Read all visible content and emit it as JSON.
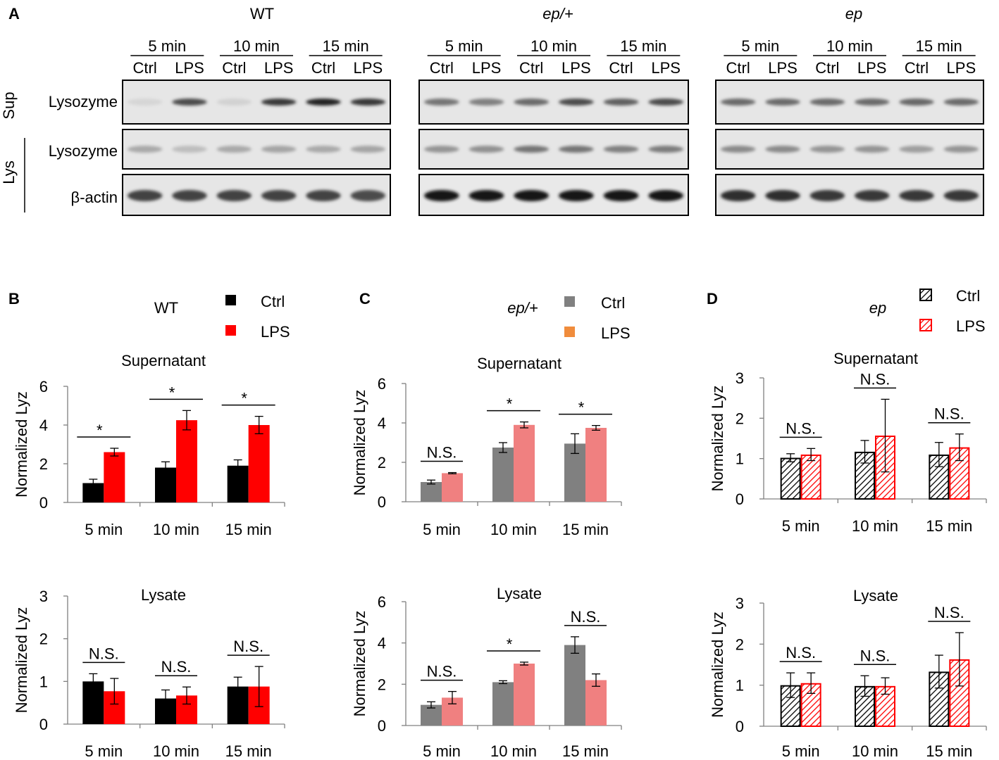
{
  "colors": {
    "wt_ctrl": "#000000",
    "wt_lps": "#ff0000",
    "het_ctrl": "#808080",
    "het_lps": "#f08080",
    "het_legend_lps": "#f08c3c",
    "ep_ctrl_hatch": "#000000",
    "ep_lps_hatch": "#ff0000"
  },
  "panel_a": {
    "letter": "A",
    "sup_label": "Sup",
    "lys_label": "Lys",
    "row_labels": [
      "Lysozyme",
      "Lysozyme",
      "β-actin"
    ],
    "blots": [
      {
        "title": "WT",
        "italic": false,
        "times": [
          "5 min",
          "10 min",
          "15 min"
        ],
        "lanes": [
          "Ctrl",
          "LPS",
          "Ctrl",
          "LPS",
          "Ctrl",
          "LPS"
        ]
      },
      {
        "title": "ep/+",
        "italic": true,
        "times": [
          "5 min",
          "10 min",
          "15 min"
        ],
        "lanes": [
          "Ctrl",
          "LPS",
          "Ctrl",
          "LPS",
          "Ctrl",
          "LPS"
        ]
      },
      {
        "title": "ep",
        "italic": true,
        "times": [
          "5 min",
          "10 min",
          "15 min"
        ],
        "lanes": [
          "Ctrl",
          "LPS",
          "Ctrl",
          "LPS",
          "Ctrl",
          "LPS"
        ]
      }
    ],
    "band_intensity": [
      [
        [
          0.08,
          0.75,
          0.1,
          0.85,
          0.95,
          0.85
        ],
        [
          0.3,
          0.2,
          0.3,
          0.32,
          0.3,
          0.32
        ],
        [
          0.8,
          0.8,
          0.8,
          0.8,
          0.8,
          0.75
        ]
      ],
      [
        [
          0.55,
          0.5,
          0.6,
          0.75,
          0.65,
          0.75
        ],
        [
          0.4,
          0.42,
          0.55,
          0.55,
          0.5,
          0.52
        ],
        [
          1.0,
          1.0,
          1.0,
          1.0,
          1.0,
          1.0
        ]
      ],
      [
        [
          0.6,
          0.6,
          0.6,
          0.6,
          0.62,
          0.6
        ],
        [
          0.45,
          0.45,
          0.4,
          0.4,
          0.35,
          0.4
        ],
        [
          0.9,
          0.9,
          0.85,
          0.85,
          0.85,
          0.85
        ]
      ]
    ]
  },
  "chart_data": [
    {
      "type": "bar",
      "panel": "B",
      "genotype": "WT",
      "title": "Supernatant",
      "ylabel": "Normalized Lyz",
      "categories": [
        "5 min",
        "10 min",
        "15 min"
      ],
      "ylim": [
        0,
        6
      ],
      "yticks": [
        0,
        2,
        4,
        6
      ],
      "series": [
        {
          "name": "Ctrl",
          "values": [
            1.0,
            1.8,
            1.9
          ],
          "errors": [
            0.2,
            0.3,
            0.3
          ]
        },
        {
          "name": "LPS",
          "values": [
            2.6,
            4.25,
            4.0
          ],
          "errors": [
            0.2,
            0.5,
            0.45
          ]
        }
      ],
      "annotations": [
        "*",
        "*",
        "*"
      ],
      "legend": [
        "Ctrl",
        "LPS"
      ]
    },
    {
      "type": "bar",
      "panel": "B",
      "genotype": "WT",
      "title": "Lysate",
      "ylabel": "Normalized Lyz",
      "categories": [
        "5 min",
        "10 min",
        "15 min"
      ],
      "ylim": [
        0,
        3
      ],
      "yticks": [
        0,
        1,
        2,
        3
      ],
      "series": [
        {
          "name": "Ctrl",
          "values": [
            1.0,
            0.6,
            0.88
          ],
          "errors": [
            0.18,
            0.2,
            0.22
          ]
        },
        {
          "name": "LPS",
          "values": [
            0.77,
            0.67,
            0.88
          ],
          "errors": [
            0.3,
            0.2,
            0.47
          ]
        }
      ],
      "annotations": [
        "N.S.",
        "N.S.",
        "N.S."
      ]
    },
    {
      "type": "bar",
      "panel": "C",
      "genotype": "ep/+",
      "title": "Supernatant",
      "ylabel": "Normalized Lyz",
      "categories": [
        "5 min",
        "10 min",
        "15 min"
      ],
      "ylim": [
        0,
        6
      ],
      "yticks": [
        0,
        2,
        4,
        6
      ],
      "series": [
        {
          "name": "Ctrl",
          "values": [
            1.0,
            2.75,
            2.95
          ],
          "errors": [
            0.1,
            0.25,
            0.5
          ]
        },
        {
          "name": "LPS",
          "values": [
            1.45,
            3.9,
            3.75
          ],
          "errors": [
            0.03,
            0.15,
            0.12
          ]
        }
      ],
      "annotations": [
        "N.S.",
        "*",
        "*"
      ],
      "legend": [
        "Ctrl",
        "LPS"
      ]
    },
    {
      "type": "bar",
      "panel": "C",
      "genotype": "ep/+",
      "title": "Lysate",
      "ylabel": "Normalized Lyz",
      "categories": [
        "5 min",
        "10 min",
        "15 min"
      ],
      "ylim": [
        0,
        6
      ],
      "yticks": [
        0,
        2,
        4,
        6
      ],
      "series": [
        {
          "name": "Ctrl",
          "values": [
            1.0,
            2.1,
            3.9
          ],
          "errors": [
            0.15,
            0.07,
            0.4
          ]
        },
        {
          "name": "LPS",
          "values": [
            1.35,
            3.0,
            2.2
          ],
          "errors": [
            0.3,
            0.07,
            0.3
          ]
        }
      ],
      "annotations": [
        "N.S.",
        "*",
        "N.S."
      ]
    },
    {
      "type": "bar",
      "panel": "D",
      "genotype": "ep",
      "title": "Supernatant",
      "ylabel": "Normalized Lyz",
      "categories": [
        "5 min",
        "10 min",
        "15 min"
      ],
      "ylim": [
        0,
        3
      ],
      "yticks": [
        0,
        1,
        2,
        3
      ],
      "series": [
        {
          "name": "Ctrl",
          "values": [
            1.02,
            1.17,
            1.1
          ],
          "errors": [
            0.1,
            0.28,
            0.3
          ]
        },
        {
          "name": "LPS",
          "values": [
            1.1,
            1.57,
            1.28
          ],
          "errors": [
            0.15,
            0.9,
            0.33
          ]
        }
      ],
      "annotations": [
        "N.S.",
        "N.S.",
        "N.S."
      ],
      "legend": [
        "Ctrl",
        "LPS"
      ]
    },
    {
      "type": "bar",
      "panel": "D",
      "genotype": "ep",
      "title": "Lysate",
      "ylabel": "Normalized Lyz",
      "categories": [
        "5 min",
        "10 min",
        "15 min"
      ],
      "ylim": [
        0,
        3
      ],
      "yticks": [
        0,
        1,
        2,
        3
      ],
      "series": [
        {
          "name": "Ctrl",
          "values": [
            1.0,
            0.98,
            1.33
          ],
          "errors": [
            0.3,
            0.25,
            0.4
          ]
        },
        {
          "name": "LPS",
          "values": [
            1.05,
            0.98,
            1.63
          ],
          "errors": [
            0.25,
            0.2,
            0.65
          ]
        }
      ],
      "annotations": [
        "N.S.",
        "N.S.",
        "N.S."
      ]
    }
  ],
  "panel_letters": [
    "B",
    "C",
    "D"
  ]
}
